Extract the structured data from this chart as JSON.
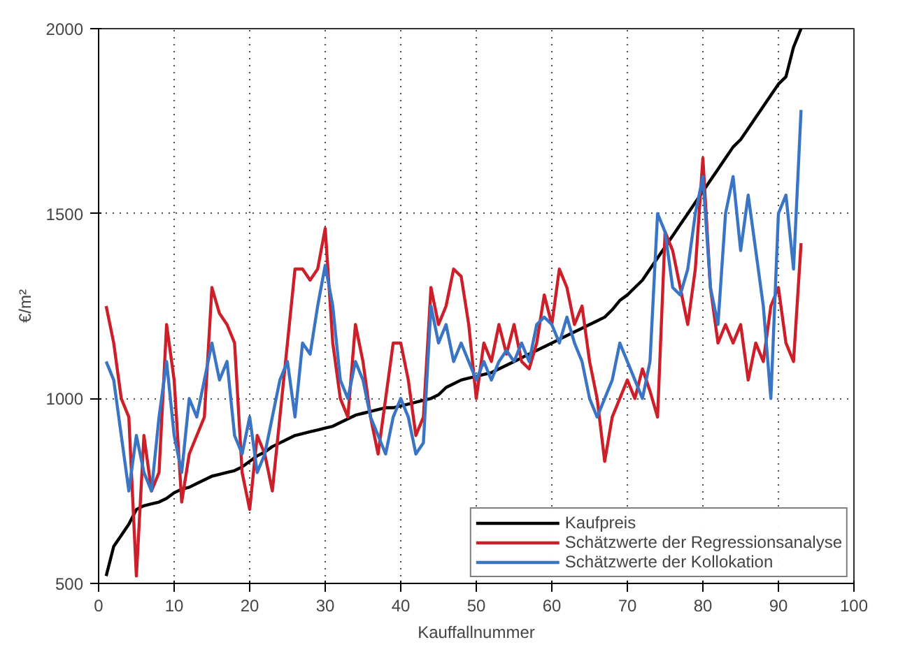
{
  "chart_data": {
    "type": "line",
    "xlabel": "Kauffallnummer",
    "ylabel": "€/m²",
    "x": [
      1,
      2,
      3,
      4,
      5,
      6,
      7,
      8,
      9,
      10,
      11,
      12,
      13,
      14,
      15,
      16,
      17,
      18,
      19,
      20,
      21,
      22,
      23,
      24,
      25,
      26,
      27,
      28,
      29,
      30,
      31,
      32,
      33,
      34,
      35,
      36,
      37,
      38,
      39,
      40,
      41,
      42,
      43,
      44,
      45,
      46,
      47,
      48,
      49,
      50,
      51,
      52,
      53,
      54,
      55,
      56,
      57,
      58,
      59,
      60,
      61,
      62,
      63,
      64,
      65,
      66,
      67,
      68,
      69,
      70,
      71,
      72,
      73,
      74,
      75,
      76,
      77,
      78,
      79,
      80,
      81,
      82,
      83,
      84,
      85,
      86,
      87,
      88,
      89,
      90,
      91,
      92,
      93
    ],
    "series": [
      {
        "name": "Kaufpreis",
        "color": "#000000",
        "values": [
          520,
          600,
          630,
          660,
          700,
          710,
          715,
          720,
          730,
          745,
          755,
          760,
          770,
          780,
          790,
          795,
          800,
          805,
          815,
          830,
          845,
          855,
          870,
          880,
          890,
          900,
          905,
          910,
          915,
          920,
          925,
          935,
          945,
          955,
          960,
          965,
          970,
          975,
          975,
          980,
          985,
          990,
          995,
          1000,
          1010,
          1030,
          1040,
          1050,
          1055,
          1060,
          1065,
          1070,
          1080,
          1090,
          1100,
          1110,
          1120,
          1130,
          1140,
          1150,
          1160,
          1170,
          1180,
          1190,
          1200,
          1210,
          1220,
          1240,
          1265,
          1280,
          1300,
          1320,
          1350,
          1380,
          1410,
          1440,
          1470,
          1500,
          1530,
          1560,
          1590,
          1620,
          1650,
          1680,
          1700,
          1730,
          1760,
          1790,
          1820,
          1850,
          1870,
          1950,
          2000
        ]
      },
      {
        "name": "Schätzwerte der Regressionsanalyse",
        "color": "#cc1f2a",
        "values": [
          1250,
          1150,
          1000,
          950,
          520,
          900,
          750,
          800,
          1200,
          1050,
          720,
          850,
          900,
          950,
          1300,
          1230,
          1200,
          1150,
          800,
          700,
          900,
          850,
          750,
          950,
          1150,
          1350,
          1350,
          1320,
          1350,
          1460,
          1150,
          1000,
          950,
          1200,
          1100,
          950,
          850,
          1000,
          1150,
          1150,
          1050,
          900,
          950,
          1300,
          1200,
          1250,
          1350,
          1330,
          1200,
          1000,
          1150,
          1100,
          1200,
          1120,
          1200,
          1100,
          1080,
          1150,
          1280,
          1200,
          1350,
          1300,
          1200,
          1250,
          1100,
          1000,
          830,
          950,
          1000,
          1050,
          1000,
          1080,
          1020,
          950,
          1450,
          1400,
          1300,
          1200,
          1350,
          1650,
          1300,
          1150,
          1200,
          1150,
          1200,
          1050,
          1150,
          1100,
          1250,
          1300,
          1150,
          1100,
          1420
        ]
      },
      {
        "name": "Schätzwerte der Kollokation",
        "color": "#3a74c4",
        "values": [
          1100,
          1050,
          900,
          750,
          900,
          800,
          750,
          950,
          1100,
          900,
          800,
          1000,
          950,
          1050,
          1150,
          1050,
          1100,
          900,
          850,
          950,
          800,
          850,
          950,
          1050,
          1100,
          950,
          1150,
          1120,
          1250,
          1360,
          1250,
          1050,
          1000,
          1100,
          1050,
          950,
          900,
          850,
          950,
          1000,
          950,
          850,
          880,
          1250,
          1150,
          1200,
          1100,
          1150,
          1100,
          1050,
          1100,
          1050,
          1100,
          1130,
          1100,
          1150,
          1100,
          1200,
          1220,
          1200,
          1150,
          1220,
          1150,
          1100,
          1000,
          950,
          1000,
          1050,
          1150,
          1100,
          1050,
          1000,
          1100,
          1500,
          1450,
          1300,
          1280,
          1350,
          1500,
          1600,
          1300,
          1200,
          1500,
          1600,
          1400,
          1550,
          1400,
          1250,
          1000,
          1500,
          1550,
          1350,
          1780
        ]
      }
    ],
    "xlim": [
      0,
      100
    ],
    "xticks": [
      0,
      10,
      20,
      30,
      40,
      50,
      60,
      70,
      80,
      90,
      100
    ],
    "ylim": [
      500,
      2000
    ],
    "yticks": [
      500,
      1000,
      1500,
      2000
    ],
    "grid": true,
    "legend": "bottom right",
    "line_style": "solid"
  }
}
